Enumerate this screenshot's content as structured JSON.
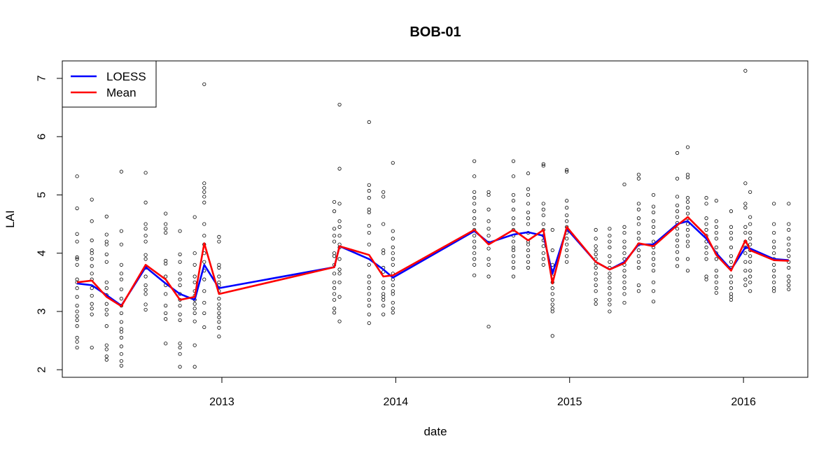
{
  "chart_data": {
    "type": "scatter",
    "title": "BOB-01",
    "xlabel": "date",
    "ylabel": "LAI",
    "xlim": [
      "2012-02-01",
      "2016-05-15"
    ],
    "ylim": [
      1.87,
      7.3
    ],
    "x_ticks": [
      {
        "date": "2013-01-01",
        "label": "2013"
      },
      {
        "date": "2014-01-01",
        "label": "2014"
      },
      {
        "date": "2015-01-01",
        "label": "2015"
      },
      {
        "date": "2016-01-01",
        "label": "2016"
      }
    ],
    "y_ticks": [
      2,
      3,
      4,
      5,
      6,
      7
    ],
    "grid": false,
    "legend": {
      "position": "top-left",
      "entries": [
        {
          "label": "LOESS",
          "color": "#0000ff"
        },
        {
          "label": "Mean",
          "color": "#ff0000"
        }
      ]
    },
    "series": [
      {
        "name": "LOESS",
        "kind": "line",
        "color": "#0000ff",
        "x": [
          "2012-03-03",
          "2012-04-03",
          "2012-05-04",
          "2012-06-04",
          "2012-07-25",
          "2012-09-05",
          "2012-10-05",
          "2012-11-05",
          "2012-11-25",
          "2012-12-26",
          "2013-08-25",
          "2013-09-05",
          "2013-11-06",
          "2013-12-06",
          "2013-12-26",
          "2014-06-15",
          "2014-07-15",
          "2014-09-05",
          "2014-10-06",
          "2014-11-07",
          "2014-11-26",
          "2014-12-26",
          "2015-02-25",
          "2015-03-26",
          "2015-04-26",
          "2015-05-26",
          "2015-06-26",
          "2015-08-15",
          "2015-09-06",
          "2015-10-15",
          "2015-11-05",
          "2015-12-06",
          "2016-01-05",
          "2016-01-15",
          "2016-03-05",
          "2016-04-05"
        ],
        "y": [
          3.48,
          3.45,
          3.28,
          3.1,
          3.76,
          3.48,
          3.3,
          3.2,
          3.8,
          3.4,
          3.76,
          4.12,
          3.9,
          3.72,
          3.58,
          4.38,
          4.18,
          4.32,
          4.36,
          4.3,
          3.65,
          4.42,
          3.85,
          3.72,
          3.85,
          4.15,
          4.15,
          4.5,
          4.55,
          4.25,
          4.0,
          3.72,
          4.1,
          4.08,
          3.9,
          3.88
        ]
      },
      {
        "name": "Mean",
        "kind": "line",
        "color": "#ff0000",
        "x": [
          "2012-03-03",
          "2012-04-03",
          "2012-05-04",
          "2012-06-04",
          "2012-07-25",
          "2012-09-05",
          "2012-10-05",
          "2012-11-05",
          "2012-11-25",
          "2012-12-26",
          "2013-08-25",
          "2013-09-05",
          "2013-11-06",
          "2013-12-06",
          "2013-12-26",
          "2014-06-15",
          "2014-07-15",
          "2014-09-05",
          "2014-10-06",
          "2014-11-07",
          "2014-11-26",
          "2014-12-26",
          "2015-02-25",
          "2015-03-26",
          "2015-04-26",
          "2015-05-26",
          "2015-06-26",
          "2015-08-15",
          "2015-09-06",
          "2015-10-15",
          "2015-11-05",
          "2015-12-06",
          "2016-01-05",
          "2016-01-15",
          "2016-03-05",
          "2016-04-05"
        ],
        "y": [
          3.5,
          3.53,
          3.25,
          3.09,
          3.8,
          3.55,
          3.2,
          3.25,
          4.17,
          3.3,
          3.76,
          4.12,
          3.97,
          3.6,
          3.62,
          4.4,
          4.15,
          4.4,
          4.22,
          4.4,
          3.48,
          4.45,
          3.85,
          3.72,
          3.83,
          4.17,
          4.12,
          4.48,
          4.62,
          4.3,
          3.97,
          3.7,
          4.22,
          4.05,
          3.88,
          3.87
        ]
      }
    ],
    "points": [
      {
        "x": "2012-03-03",
        "y": [
          5.32,
          4.77,
          4.33,
          4.2,
          3.93,
          3.9,
          3.8,
          3.55,
          3.5,
          3.4,
          3.25,
          3.1,
          3.0,
          2.92,
          2.85,
          2.75,
          2.55,
          2.48,
          2.38
        ]
      },
      {
        "x": "2012-04-03",
        "y": [
          4.92,
          4.55,
          4.22,
          4.05,
          4.0,
          3.9,
          3.78,
          3.65,
          3.55,
          3.4,
          3.27,
          3.13,
          3.05,
          2.95,
          2.38
        ]
      },
      {
        "x": "2012-05-04",
        "y": [
          4.63,
          4.32,
          4.2,
          4.15,
          3.98,
          3.85,
          3.5,
          3.4,
          3.28,
          3.13,
          3.03,
          2.95,
          2.75,
          2.42,
          2.35,
          2.23,
          2.17
        ]
      },
      {
        "x": "2012-06-04",
        "y": [
          5.4,
          4.38,
          4.15,
          3.8,
          3.65,
          3.55,
          3.38,
          3.22,
          3.1,
          2.97,
          2.82,
          2.7,
          2.65,
          2.55,
          2.4,
          2.27,
          2.15,
          2.07
        ]
      },
      {
        "x": "2012-07-25",
        "y": [
          5.38,
          4.87,
          4.5,
          4.42,
          4.3,
          4.2,
          3.97,
          3.9,
          3.75,
          3.6,
          3.45,
          3.37,
          3.3,
          3.12,
          3.03
        ]
      },
      {
        "x": "2012-09-05",
        "y": [
          4.68,
          4.5,
          4.42,
          4.35,
          3.87,
          3.82,
          3.6,
          3.45,
          3.3,
          3.1,
          2.97,
          2.87,
          2.45
        ]
      },
      {
        "x": "2012-10-05",
        "y": [
          4.38,
          3.98,
          3.85,
          3.65,
          3.55,
          3.45,
          3.3,
          3.2,
          3.1,
          2.95,
          2.85,
          2.45,
          2.38,
          2.27,
          2.05
        ]
      },
      {
        "x": "2012-11-05",
        "y": [
          4.62,
          4.0,
          3.8,
          3.6,
          3.5,
          3.35,
          3.27,
          3.2,
          3.13,
          3.05,
          2.97,
          2.83,
          2.42,
          2.05
        ]
      },
      {
        "x": "2012-11-25",
        "y": [
          6.9,
          5.2,
          5.12,
          5.05,
          4.97,
          4.87,
          4.5,
          4.3,
          4.15,
          4.0,
          3.85,
          3.7,
          3.55,
          3.35,
          3.15,
          2.97,
          2.73
        ]
      },
      {
        "x": "2012-12-26",
        "y": [
          4.28,
          4.2,
          3.8,
          3.75,
          3.6,
          3.5,
          3.45,
          3.35,
          3.22,
          3.12,
          3.05,
          2.97,
          2.9,
          2.82,
          2.72,
          2.57
        ]
      },
      {
        "x": "2013-08-25",
        "y": [
          4.88,
          4.72,
          4.42,
          4.3,
          4.2,
          4.0,
          3.95,
          3.8,
          3.65,
          3.5,
          3.4,
          3.3,
          3.2,
          3.05,
          2.98
        ]
      },
      {
        "x": "2013-09-05",
        "y": [
          6.55,
          5.45,
          4.85,
          4.55,
          4.45,
          4.3,
          4.15,
          4.1,
          3.9,
          3.72,
          3.65,
          3.5,
          3.25,
          2.83
        ]
      },
      {
        "x": "2013-11-06",
        "y": [
          6.25,
          5.17,
          5.07,
          4.95,
          4.75,
          4.7,
          4.47,
          4.35,
          4.15,
          3.8,
          3.6,
          3.5,
          3.4,
          3.3,
          3.2,
          3.1,
          2.95,
          2.8
        ]
      },
      {
        "x": "2013-12-06",
        "y": [
          5.05,
          4.97,
          4.5,
          4.05,
          4.0,
          3.75,
          3.68,
          3.5,
          3.4,
          3.3,
          3.25,
          3.2,
          3.1,
          2.95
        ]
      },
      {
        "x": "2013-12-26",
        "y": [
          5.55,
          4.38,
          4.25,
          4.1,
          4.0,
          3.9,
          3.8,
          3.65,
          3.55,
          3.45,
          3.35,
          3.3,
          3.15,
          3.05,
          2.98
        ]
      },
      {
        "x": "2014-06-15",
        "y": [
          5.58,
          5.32,
          5.05,
          4.95,
          4.85,
          4.72,
          4.6,
          4.5,
          4.4,
          4.3,
          4.2,
          4.1,
          4.0,
          3.9,
          3.8,
          3.62
        ]
      },
      {
        "x": "2014-07-15",
        "y": [
          5.05,
          5.0,
          4.75,
          4.55,
          4.42,
          4.3,
          4.18,
          4.08,
          3.9,
          3.8,
          3.6,
          2.74
        ]
      },
      {
        "x": "2014-09-05",
        "y": [
          5.58,
          5.32,
          5.0,
          4.9,
          4.75,
          4.6,
          4.5,
          4.4,
          4.3,
          4.2,
          4.1,
          4.05,
          3.95,
          3.85,
          3.75,
          3.6
        ]
      },
      {
        "x": "2014-10-06",
        "y": [
          5.37,
          5.1,
          5.0,
          4.85,
          4.7,
          4.6,
          4.5,
          4.35,
          4.2,
          4.15,
          4.05,
          3.95,
          3.85,
          3.75
        ]
      },
      {
        "x": "2014-11-07",
        "y": [
          5.53,
          5.5,
          4.85,
          4.75,
          4.65,
          4.5,
          4.4,
          4.3,
          4.22,
          4.12,
          4.0,
          3.9,
          3.8
        ]
      },
      {
        "x": "2014-11-26",
        "y": [
          4.4,
          4.05,
          3.8,
          3.7,
          3.6,
          3.5,
          3.4,
          3.3,
          3.2,
          3.12,
          3.05,
          3.0,
          2.58
        ]
      },
      {
        "x": "2014-12-26",
        "y": [
          5.43,
          5.4,
          4.9,
          4.78,
          4.65,
          4.55,
          4.45,
          4.35,
          4.25,
          4.15,
          4.05,
          3.95,
          3.85
        ]
      },
      {
        "x": "2015-02-25",
        "y": [
          4.4,
          4.25,
          4.12,
          4.05,
          3.98,
          3.9,
          3.82,
          3.75,
          3.65,
          3.55,
          3.45,
          3.35,
          3.2,
          3.13
        ]
      },
      {
        "x": "2015-03-26",
        "y": [
          4.42,
          4.3,
          4.2,
          4.1,
          3.95,
          3.85,
          3.75,
          3.65,
          3.58,
          3.5,
          3.4,
          3.3,
          3.2,
          3.12,
          3.0
        ]
      },
      {
        "x": "2015-04-26",
        "y": [
          5.18,
          4.45,
          4.35,
          4.2,
          4.1,
          4.0,
          3.9,
          3.8,
          3.7,
          3.6,
          3.5,
          3.4,
          3.3,
          3.15
        ]
      },
      {
        "x": "2015-05-26",
        "y": [
          5.35,
          5.28,
          4.85,
          4.75,
          4.6,
          4.5,
          4.35,
          4.25,
          4.15,
          4.05,
          3.95,
          3.85,
          3.75,
          3.45,
          3.35
        ]
      },
      {
        "x": "2015-06-26",
        "y": [
          5.0,
          4.8,
          4.7,
          4.55,
          4.45,
          4.35,
          4.2,
          4.1,
          4.0,
          3.9,
          3.8,
          3.7,
          3.5,
          3.35,
          3.17
        ]
      },
      {
        "x": "2015-08-15",
        "y": [
          5.72,
          5.28,
          4.97,
          4.82,
          4.72,
          4.62,
          4.52,
          4.42,
          4.32,
          4.22,
          4.12,
          4.02,
          3.9,
          3.78
        ]
      },
      {
        "x": "2015-09-06",
        "y": [
          5.82,
          5.35,
          5.3,
          4.95,
          4.88,
          4.78,
          4.68,
          4.6,
          4.5,
          4.4,
          4.3,
          4.2,
          4.12,
          3.9,
          3.7
        ]
      },
      {
        "x": "2015-10-15",
        "y": [
          4.95,
          4.85,
          4.6,
          4.5,
          4.4,
          4.3,
          4.2,
          4.1,
          4.0,
          3.9,
          3.6,
          3.55
        ]
      },
      {
        "x": "2015-11-05",
        "y": [
          4.9,
          4.55,
          4.45,
          4.35,
          4.25,
          4.1,
          4.0,
          3.9,
          3.7,
          3.6,
          3.5,
          3.4,
          3.32
        ]
      },
      {
        "x": "2015-12-06",
        "y": [
          4.72,
          4.45,
          4.35,
          4.25,
          4.1,
          3.95,
          3.85,
          3.75,
          3.6,
          3.5,
          3.4,
          3.3,
          3.25,
          3.2
        ]
      },
      {
        "x": "2016-01-05",
        "y": [
          7.13,
          5.2,
          4.85,
          4.78,
          4.45,
          4.35,
          4.2,
          4.1,
          4.0,
          3.85,
          3.7,
          3.55,
          3.45
        ]
      },
      {
        "x": "2016-01-15",
        "y": [
          5.05,
          4.62,
          4.5,
          4.35,
          4.25,
          4.15,
          4.05,
          3.95,
          3.85,
          3.7,
          3.6,
          3.5,
          3.35
        ]
      },
      {
        "x": "2016-03-05",
        "y": [
          4.85,
          4.5,
          4.35,
          4.2,
          4.1,
          4.0,
          3.9,
          3.8,
          3.7,
          3.6,
          3.5,
          3.4,
          3.35
        ]
      },
      {
        "x": "2016-04-05",
        "y": [
          4.85,
          4.5,
          4.4,
          4.25,
          4.15,
          4.05,
          3.95,
          3.85,
          3.75,
          3.6,
          3.52,
          3.45,
          3.38
        ]
      }
    ]
  }
}
